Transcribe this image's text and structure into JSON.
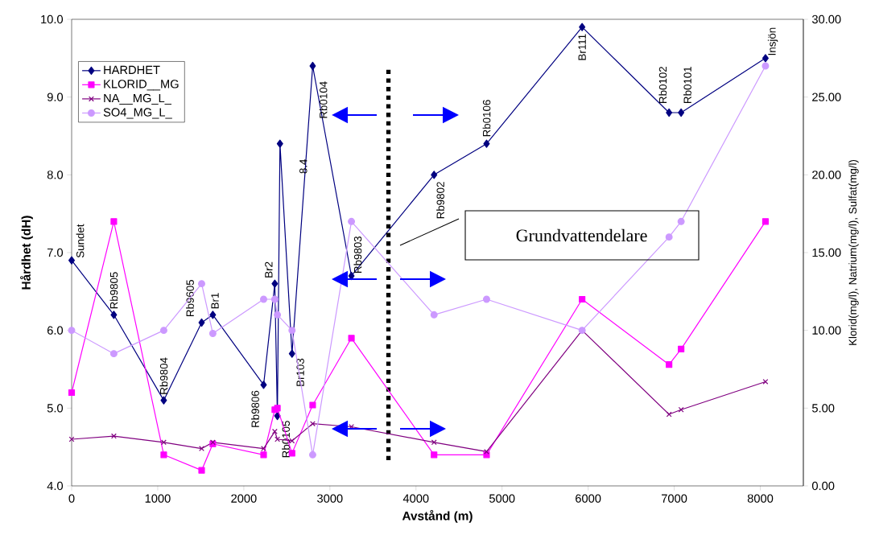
{
  "chart_data": {
    "type": "line",
    "xlabel": "Avstånd (m)",
    "ylabel": "Hårdhet (dH)",
    "y2label": "Klorid(mg/l), Natrium(mg/l), Sulfat(mg/l)",
    "xlim": [
      0,
      8500
    ],
    "xticks": [
      0,
      1000,
      2000,
      3000,
      4000,
      5000,
      6000,
      7000,
      8000
    ],
    "ylim": [
      4,
      10
    ],
    "yticks": [
      {
        "value": 4,
        "label": "4.0"
      },
      {
        "value": 5,
        "label": "5.0"
      },
      {
        "value": 6,
        "label": "6.0"
      },
      {
        "value": 7,
        "label": "7.0"
      },
      {
        "value": 8,
        "label": "8.0"
      },
      {
        "value": 9,
        "label": "9.0"
      },
      {
        "value": 10,
        "label": "10.0"
      }
    ],
    "y2lim": [
      0,
      30
    ],
    "y2ticks": [
      {
        "value": 0,
        "label": "0.00"
      },
      {
        "value": 5,
        "label": "5.00"
      },
      {
        "value": 10,
        "label": "10.00"
      },
      {
        "value": 15,
        "label": "15.00"
      },
      {
        "value": 20,
        "label": "20.00"
      },
      {
        "value": 25,
        "label": "25.00"
      },
      {
        "value": 30,
        "label": "30.00"
      }
    ],
    "legend": "top left",
    "grid": false,
    "line_style": "solid",
    "series": [
      {
        "name": "HARDHET",
        "color": "#000080",
        "marker": "diamond",
        "x": [
          0,
          490,
          1070,
          1510,
          1640,
          2230,
          2360,
          2390,
          2420,
          2560,
          2800,
          3250,
          4210,
          4820,
          5930,
          6940,
          7080,
          8060
        ],
        "values": [
          6.9,
          6.2,
          5.1,
          6.1,
          6.2,
          5.3,
          6.6,
          4.9,
          8.4,
          5.7,
          9.4,
          6.7,
          8.0,
          8.4,
          9.9,
          8.8,
          8.8,
          9.5
        ]
      },
      {
        "name": "KLORID__MG",
        "color": "#ff00ff",
        "marker": "square",
        "axis": "y2",
        "x": [
          0,
          490,
          1070,
          1510,
          1640,
          2230,
          2360,
          2390,
          2560,
          2800,
          3250,
          4210,
          4820,
          5930,
          6940,
          7080,
          8060
        ],
        "values": [
          6.0,
          17.0,
          2.0,
          1.0,
          2.7,
          2.0,
          4.9,
          5.0,
          2.1,
          5.2,
          9.5,
          2.0,
          2.0,
          12.0,
          7.8,
          8.8,
          17.0
        ]
      },
      {
        "name": "NA__MG_L_",
        "color": "#800080",
        "marker": "cross",
        "axis": "y2",
        "x": [
          0,
          490,
          1070,
          1510,
          1640,
          2230,
          2360,
          2390,
          2560,
          2800,
          3250,
          4210,
          4820,
          5930,
          6940,
          7080,
          8060
        ],
        "values": [
          3.0,
          3.2,
          2.8,
          2.4,
          2.8,
          2.4,
          3.5,
          3.0,
          2.9,
          4.0,
          3.8,
          2.8,
          2.2,
          10.0,
          4.6,
          4.9,
          6.7
        ]
      },
      {
        "name": "SO4_MG_L_",
        "color": "#cc99ff",
        "marker": "circle",
        "axis": "y2",
        "x": [
          0,
          490,
          1070,
          1510,
          1640,
          2230,
          2360,
          2390,
          2560,
          2800,
          3250,
          4210,
          4820,
          5930,
          6940,
          7080,
          8060
        ],
        "values": [
          10.0,
          8.5,
          10.0,
          13.0,
          9.8,
          12.0,
          12.0,
          11.0,
          10.0,
          2.0,
          17.0,
          11.0,
          12.0,
          10.0,
          16.0,
          17.0,
          27.0
        ]
      }
    ],
    "ref_lines": [
      {
        "axis": "x",
        "value": 3680,
        "color": "#000000",
        "line_style": "dotted"
      }
    ],
    "annotations": [
      {
        "text": "Sundet",
        "x": 0,
        "y": 6.9
      },
      {
        "text": "Rb9805",
        "x": 490,
        "y": 6.2
      },
      {
        "text": "Rb9804",
        "x": 1070,
        "y": 5.1
      },
      {
        "text": "Rb9605",
        "x": 1510,
        "y": 6.1
      },
      {
        "text": "Br1",
        "x": 1640,
        "y": 6.2
      },
      {
        "text": "Rb9806",
        "x": 2230,
        "y": 5.3
      },
      {
        "text": "Br2",
        "x": 2360,
        "y": 6.6
      },
      {
        "text": "Rb0105",
        "x": 2390,
        "y": 4.9
      },
      {
        "text": "8.4",
        "x": 2420,
        "y": 8.4
      },
      {
        "text": "Br103",
        "x": 2560,
        "y": 5.7
      },
      {
        "text": "Rb0104",
        "x": 2800,
        "y": 9.4
      },
      {
        "text": "Rb9803",
        "x": 3250,
        "y": 6.7
      },
      {
        "text": "Rb9802",
        "x": 4210,
        "y": 8.0
      },
      {
        "text": "Rb0106",
        "x": 4820,
        "y": 8.4
      },
      {
        "text": "Br111",
        "x": 5930,
        "y": 9.9
      },
      {
        "text": "Rb0102",
        "x": 6940,
        "y": 8.8
      },
      {
        "text": "Rb0101",
        "x": 7080,
        "y": 8.8
      },
      {
        "text": "Insjön",
        "x": 8060,
        "y": 9.5
      },
      "Grundvattendelare"
    ]
  }
}
